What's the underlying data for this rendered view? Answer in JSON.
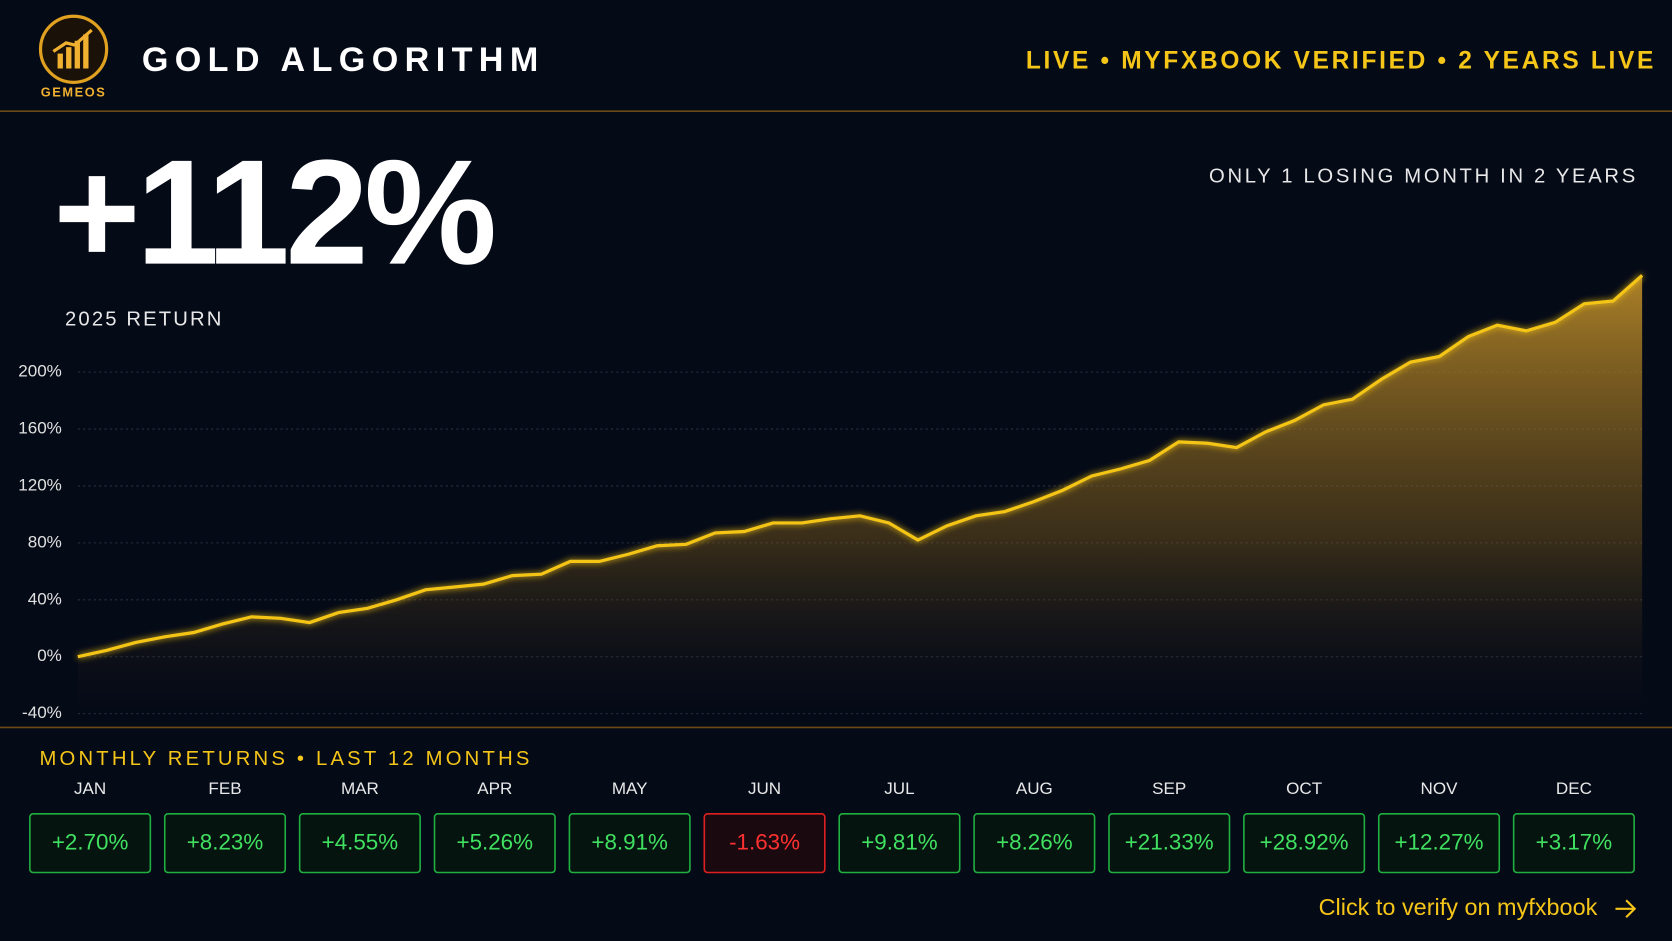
{
  "header": {
    "logo_text": "GEMEOS",
    "title": "GOLD ALGORITHM",
    "status": "LIVE • MYFXBOOK VERIFIED • 2 YEARS LIVE"
  },
  "headline": {
    "value_text": "+112%",
    "caption": "2025 RETURN",
    "note": "ONLY 1 LOSING MONTH IN 2 YEARS"
  },
  "chart_data": {
    "type": "area",
    "color": "#f5c518",
    "values": [
      0,
      4.5,
      10,
      14,
      17,
      23,
      28,
      27,
      24,
      31,
      34,
      40,
      47,
      49,
      51,
      57,
      58,
      67,
      67,
      72,
      78,
      79,
      87,
      88,
      94,
      94,
      97,
      99,
      94,
      82,
      92,
      99,
      102,
      109,
      117,
      127,
      132,
      138,
      151,
      150,
      147,
      158,
      166,
      177,
      181,
      195,
      207,
      211,
      225,
      233,
      229,
      235,
      248,
      250,
      268
    ],
    "ylim": [
      -40,
      280
    ],
    "yticks": [
      {
        "value": -40,
        "label": "-40%"
      },
      {
        "value": 0,
        "label": "0%"
      },
      {
        "value": 40,
        "label": "40%"
      },
      {
        "value": 80,
        "label": "80%"
      },
      {
        "value": 120,
        "label": "120%"
      },
      {
        "value": 160,
        "label": "160%"
      },
      {
        "value": 200,
        "label": "200%"
      }
    ],
    "grid": true
  },
  "monthly": {
    "title": "MONTHLY RETURNS • LAST 12 MONTHS",
    "months": [
      "JAN",
      "FEB",
      "MAR",
      "APR",
      "MAY",
      "JUN",
      "JUL",
      "AUG",
      "SEP",
      "OCT",
      "NOV",
      "DEC"
    ],
    "values": [
      2.7,
      8.23,
      4.55,
      5.26,
      8.91,
      -1.63,
      9.81,
      8.26,
      21.33,
      28.92,
      12.27,
      3.17
    ],
    "value_labels": [
      "+2.70%",
      "+8.23%",
      "+4.55%",
      "+5.26%",
      "+8.91%",
      "-1.63%",
      "+9.81%",
      "+8.26%",
      "+21.33%",
      "+28.92%",
      "+12.27%",
      "+3.17%"
    ]
  },
  "link": {
    "text": "Click to verify on myfxbook"
  }
}
